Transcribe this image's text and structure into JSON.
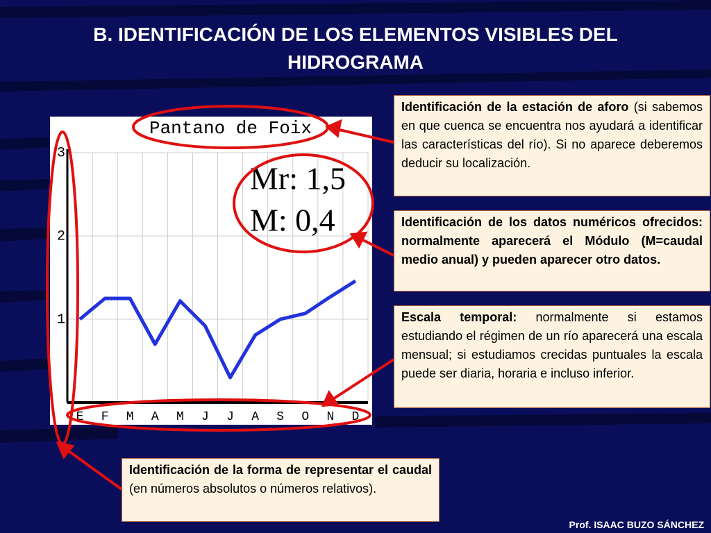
{
  "title": "B. IDENTIFICACIÓN DE LOS ELEMENTOS VISIBLES DEL HIDROGRAMA",
  "chart_data": {
    "type": "line",
    "title": "Pantano de Foix",
    "annotations": [
      "Mr: 1,5",
      "M: 0,4"
    ],
    "categories": [
      "E",
      "F",
      "M",
      "A",
      "M",
      "J",
      "J",
      "A",
      "S",
      "O",
      "N",
      "D"
    ],
    "values": [
      1.0,
      1.25,
      1.25,
      0.7,
      1.22,
      0.92,
      0.3,
      0.81,
      1.0,
      1.07,
      1.27,
      1.46
    ],
    "color": "#2233dd",
    "ylim": [
      0,
      3
    ],
    "yticks": [
      1,
      2,
      3
    ],
    "grid": true
  },
  "callouts": [
    {
      "bold": "Identificación de la estación de aforo",
      "text": " (si sabemos en que cuenca se encuentra nos ayudará a identificar las características del río). Si no aparece deberemos deducir su localización."
    },
    {
      "bold": "Identificación de los datos numéricos ofrecidos: normalmente aparecerá el Módulo (M=caudal medio anual) y pueden aparecer otro datos.",
      "text": ""
    },
    {
      "bold": "Escala temporal:",
      "text": " normalmente si estamos estudiando el régimen de un río aparecerá una escala mensual; si estudiamos crecidas puntuales la escala puede ser diaria, horaria e incluso inferior."
    },
    {
      "bold": "Identificación de la forma de representar el caudal",
      "text": " (en números absolutos o números relativos)."
    }
  ],
  "footer": "Prof. ISAAC BUZO SÁNCHEZ"
}
